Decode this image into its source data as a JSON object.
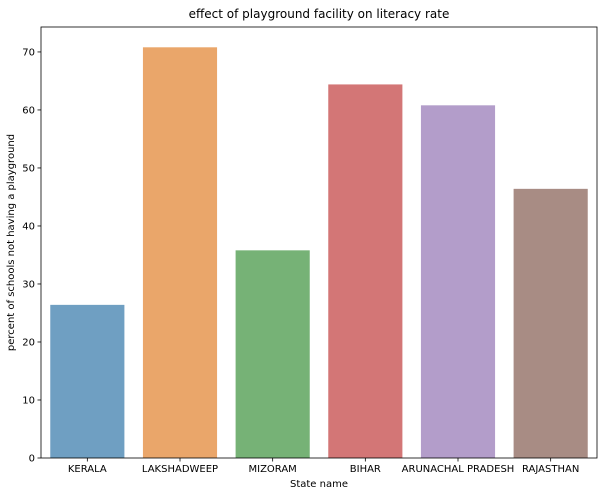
{
  "chart_data": {
    "type": "bar",
    "title": "effect of playground facility on literacy rate",
    "xlabel": "State name",
    "ylabel": "percent of schools not having a playground",
    "categories": [
      "KERALA",
      "LAKSHADWEEP",
      "MIZORAM",
      "BIHAR",
      "ARUNACHAL PRADESH",
      "RAJASTHAN"
    ],
    "values": [
      26.4,
      70.8,
      35.8,
      64.4,
      60.8,
      46.4
    ],
    "colors": [
      "#6f9fc2",
      "#eaa66a",
      "#76b276",
      "#d37676",
      "#b39dca",
      "#a88c84"
    ],
    "ylim": [
      0,
      74.3
    ],
    "yticks": [
      0,
      10,
      20,
      30,
      40,
      50,
      60,
      70
    ],
    "grid": false,
    "legend": "none"
  }
}
